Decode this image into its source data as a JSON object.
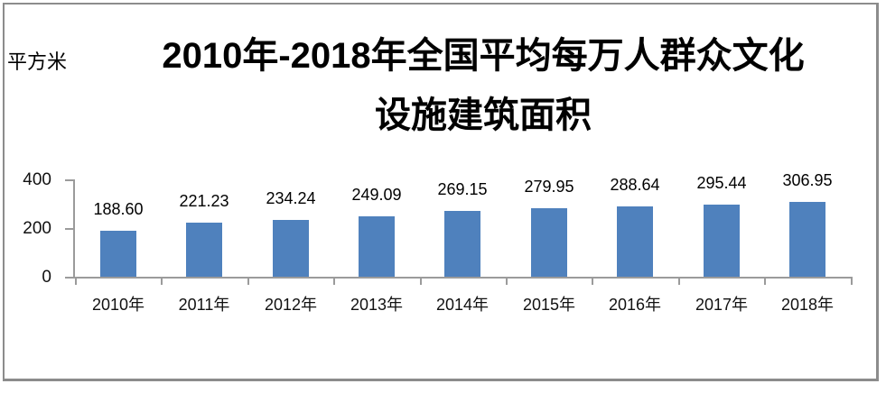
{
  "unit_label": "平方米",
  "title": {
    "line1": "2010年-2018年全国平均每万人群众文化",
    "line2": "设施建筑面积"
  },
  "colors": {
    "bar": "#4f81bd",
    "axis": "#9b9b9b",
    "frame": "#8c8c8c",
    "text": "#000000"
  },
  "chart_data": {
    "type": "bar",
    "title": "2010年-2018年全国平均每万人群众文化设施建筑面积",
    "xlabel": "",
    "ylabel": "平方米",
    "categories": [
      "2010年",
      "2011年",
      "2012年",
      "2013年",
      "2014年",
      "2015年",
      "2016年",
      "2017年",
      "2018年"
    ],
    "values": [
      188.6,
      221.23,
      234.24,
      249.09,
      269.15,
      279.95,
      288.64,
      295.44,
      306.95
    ],
    "value_labels": [
      "188.60",
      "221.23",
      "234.24",
      "249.09",
      "269.15",
      "279.95",
      "288.64",
      "295.44",
      "306.95"
    ],
    "ylim": [
      0,
      400
    ],
    "yticks": [
      0,
      200,
      400
    ],
    "grid": false,
    "legend": "none",
    "data_labels_position": "outside-end"
  }
}
